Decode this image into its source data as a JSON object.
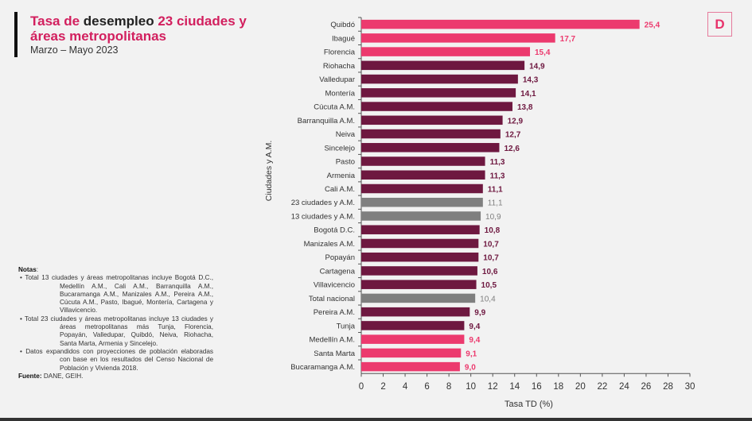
{
  "title": {
    "part1": "Tasa de ",
    "part2": "desempleo",
    "part3": " 23 ciudades y áreas metropolitanas"
  },
  "subtitle": "Marzo – Mayo 2023",
  "logo": "D",
  "notes": {
    "heading": "Notas",
    "items": [
      "• Total 13 ciudades y áreas metropolitanas incluye Bogotá D.C., Medellín A.M., Cali A.M., Barranquilla A.M., Bucaramanga A.M., Manizales A.M., Pereira A.M., Cúcuta A.M., Pasto, Ibagué, Montería, Cartagena y Villavicencio.",
      "• Total 23 ciudades y áreas metropolitanas incluye 13 ciudades y áreas metropolitanas más Tunja, Florencia, Popayán, Valledupar, Quibdó, Neiva, Riohacha, Santa Marta, Armenia y Sincelejo.",
      "• Datos expandidos con proyecciones de población elaboradas con base en los resultados del Censo Nacional de Población y Vivienda 2018."
    ],
    "source_label": "Fuente:",
    "source": " DANE, GEIH."
  },
  "colors": {
    "pink": "#ec3a6e",
    "maroon": "#6e1840",
    "grey": "#7f7f7f"
  },
  "chart_data": {
    "type": "bar",
    "orientation": "horizontal",
    "xlabel": "Tasa TD (%)",
    "ylabel": "Ciudades  y A.M.",
    "xlim": [
      0,
      30
    ],
    "xticks": [
      0,
      2,
      4,
      6,
      8,
      10,
      12,
      14,
      16,
      18,
      20,
      22,
      24,
      26,
      28,
      30
    ],
    "grid": false,
    "categories": [
      "Quibdó",
      "Ibagué",
      "Florencia",
      "Riohacha",
      "Valledupar",
      "Montería",
      "Cúcuta A.M.",
      "Barranquilla A.M.",
      "Neiva",
      "Sincelejo",
      "Pasto",
      "Armenia",
      "Cali A.M.",
      "23 ciudades y A.M.",
      "13 ciudades y A.M.",
      "Bogotá D.C.",
      "Manizales A.M.",
      "Popayán",
      "Cartagena",
      "Villavicencio",
      "Total nacional",
      "Pereira A.M.",
      "Tunja",
      "Medellín A.M.",
      "Santa Marta",
      "Bucaramanga A.M."
    ],
    "values": [
      25.4,
      17.7,
      15.4,
      14.9,
      14.3,
      14.1,
      13.8,
      12.9,
      12.7,
      12.6,
      11.3,
      11.3,
      11.1,
      11.1,
      10.9,
      10.8,
      10.7,
      10.7,
      10.6,
      10.5,
      10.4,
      9.9,
      9.4,
      9.4,
      9.1,
      9.0
    ],
    "labels": [
      "25,4",
      "17,7",
      "15,4",
      "14,9",
      "14,3",
      "14,1",
      "13,8",
      "12,9",
      "12,7",
      "12,6",
      "11,3",
      "11,3",
      "11,1",
      "11,1",
      "10,9",
      "10,8",
      "10,7",
      "10,7",
      "10,6",
      "10,5",
      "10,4",
      "9,9",
      "9,4",
      "9,4",
      "9,1",
      "9,0"
    ],
    "bar_color": [
      "pink",
      "pink",
      "pink",
      "maroon",
      "maroon",
      "maroon",
      "maroon",
      "maroon",
      "maroon",
      "maroon",
      "maroon",
      "maroon",
      "maroon",
      "grey",
      "grey",
      "maroon",
      "maroon",
      "maroon",
      "maroon",
      "maroon",
      "grey",
      "maroon",
      "maroon",
      "pink",
      "pink",
      "pink"
    ]
  }
}
